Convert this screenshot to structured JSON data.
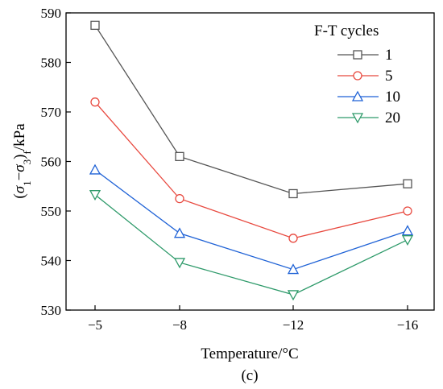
{
  "chart_data": {
    "type": "line",
    "categories": [
      "−5",
      "−8",
      "−12",
      "−16"
    ],
    "xlabel": "Temperature/°C",
    "ylabel_parts": {
      "open": "(",
      "s1": "σ",
      "sub1": "1",
      "minus": "−",
      "s3": "σ",
      "sub3": "3",
      "close": ")",
      "subf": "f",
      "unit": "/kPa"
    },
    "ylim": [
      530,
      590
    ],
    "yticks": [
      530,
      540,
      550,
      560,
      570,
      580,
      590
    ],
    "caption": "(c)",
    "legend_title": "F-T cycles",
    "legend_position": "top-right",
    "series": [
      {
        "name": "1",
        "values": [
          587.5,
          561.0,
          553.5,
          555.5
        ],
        "color": "#555555",
        "marker": "square"
      },
      {
        "name": "5",
        "values": [
          572.0,
          552.5,
          544.5,
          550.0
        ],
        "color": "#e8493f",
        "marker": "circle"
      },
      {
        "name": "10",
        "values": [
          558.3,
          545.5,
          538.2,
          546.0
        ],
        "color": "#1f62d6",
        "marker": "triangle-up"
      },
      {
        "name": "20",
        "values": [
          553.3,
          539.6,
          533.1,
          544.2
        ],
        "color": "#2e9a6a",
        "marker": "triangle-down"
      }
    ]
  }
}
